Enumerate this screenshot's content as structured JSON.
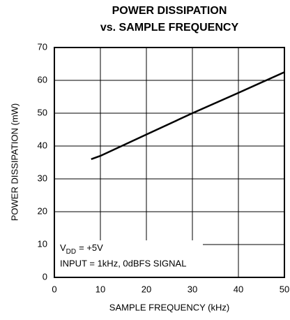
{
  "chart_data": {
    "type": "line",
    "title": [
      "POWER DISSIPATION",
      "vs. SAMPLE FREQUENCY"
    ],
    "xlabel": "SAMPLE FREQUENCY (kHz)",
    "ylabel": "POWER DISSIPATION (mW)",
    "x": [
      8,
      10,
      20,
      30,
      40,
      50
    ],
    "series": [
      {
        "color": "#000000",
        "values": [
          36,
          37,
          43.5,
          50,
          56.2,
          62.5
        ]
      }
    ],
    "xlim": [
      0,
      50
    ],
    "xticks": [
      0,
      10,
      20,
      30,
      40,
      50
    ],
    "ylim": [
      0,
      70
    ],
    "yticks": [
      0,
      10,
      20,
      30,
      40,
      50,
      60,
      70
    ],
    "grid": true,
    "annotation": {
      "vdd": {
        "base": "V",
        "sub": "DD",
        "rest": "= +5V"
      },
      "input": "INPUT = 1kHz, 0dBFS SIGNAL"
    }
  }
}
